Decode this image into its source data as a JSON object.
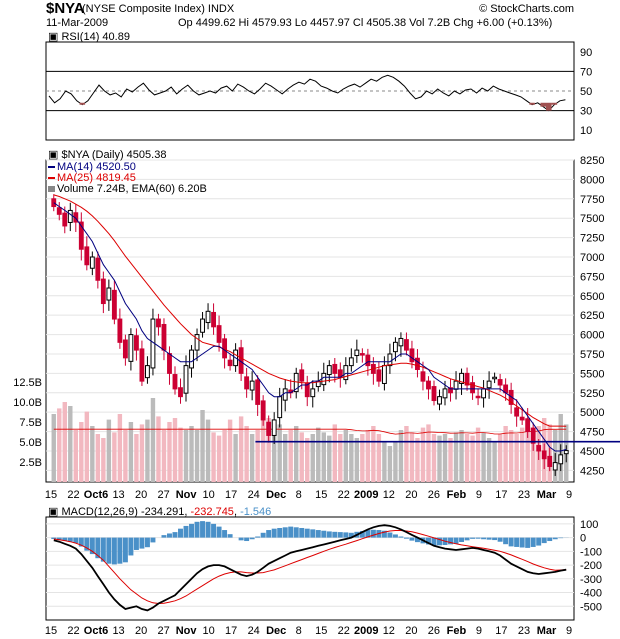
{
  "header": {
    "symbol": "$NYA",
    "name": "(NYSE Composite Index) INDX",
    "copyright": "© StockCharts.com",
    "date": "11-Mar-2009",
    "quote": "Op 4499.62  Hi 4579.93  Lo 4457.97  Cl 4505.38  Vol 7.2B  Chg +6.00 (+0.13%)"
  },
  "colors": {
    "up": "#000000",
    "down": "#cc0033",
    "ma14": "#000080",
    "ma25": "#dd0000",
    "vol_up": "#bbbbbb",
    "vol_down": "#f2b8c0",
    "macd": "#000000",
    "signal": "#dd0000",
    "hist": "#4a90c8",
    "rsi_fill": "#a05050",
    "support": "#000080"
  },
  "chart_data": [
    {
      "type": "line",
      "label": "RSI(14) 40.89",
      "y_ticks": [
        "90",
        "70",
        "50",
        "30",
        "10"
      ],
      "ylim": [
        0,
        100
      ],
      "values": [
        45,
        38,
        42,
        50,
        47,
        40,
        36,
        40,
        48,
        56,
        50,
        46,
        48,
        44,
        52,
        49,
        54,
        58,
        51,
        46,
        48,
        50,
        54,
        47,
        52,
        56,
        50,
        46,
        48,
        50,
        48,
        53,
        55,
        50,
        57,
        54,
        50,
        47,
        52,
        58,
        55,
        51,
        47,
        52,
        56,
        59,
        57,
        62,
        60,
        55,
        53,
        50,
        48,
        52,
        55,
        57,
        54,
        58,
        62,
        60,
        64,
        66,
        64,
        60,
        55,
        48,
        42,
        44,
        50,
        47,
        52,
        48,
        45,
        50,
        47,
        51,
        52,
        48,
        53,
        50,
        55,
        52,
        50,
        48,
        46,
        44,
        40,
        36,
        38,
        34,
        30,
        36,
        40,
        41
      ]
    },
    {
      "type": "candlestick",
      "label": "$NYA (Daily) 4505.38",
      "legend": [
        "MA(14) 4520.50",
        "MA(25) 4819.45",
        "Volume 7.24B, EMA(60) 6.20B"
      ],
      "y_ticks": [
        "8250",
        "8000",
        "7750",
        "7500",
        "7250",
        "7000",
        "6750",
        "6500",
        "6250",
        "6000",
        "5750",
        "5500",
        "5250",
        "5000",
        "4750",
        "4500",
        "4250"
      ],
      "vol_ticks": [
        "12.5B",
        "10.0B",
        "7.5B",
        "5.0B",
        "2.5B"
      ],
      "ylim": [
        4100,
        8250
      ],
      "volume_max": 12.5,
      "support_level": 4620,
      "x_ticks": [
        "15",
        "22",
        "Oct6",
        "13",
        "20",
        "27",
        "Nov",
        "10",
        "17",
        "24",
        "Dec",
        "8",
        "15",
        "22",
        "2009",
        "12",
        "20",
        "26",
        "Feb",
        "9",
        "17",
        "23",
        "Mar",
        "9"
      ],
      "closes": [
        7650,
        7550,
        7400,
        7600,
        7450,
        7100,
        6900,
        7000,
        6700,
        6400,
        6600,
        6200,
        5900,
        5700,
        6000,
        5800,
        5400,
        5600,
        6200,
        6100,
        5800,
        5500,
        5300,
        5200,
        5600,
        5800,
        6000,
        6200,
        6300,
        6100,
        5900,
        5700,
        5600,
        5800,
        5500,
        5300,
        5400,
        5100,
        4900,
        4700,
        4900,
        5200,
        5300,
        5250,
        5500,
        5400,
        5200,
        5300,
        5400,
        5500,
        5600,
        5500,
        5450,
        5600,
        5700,
        5800,
        5750,
        5600,
        5500,
        5400,
        5600,
        5750,
        5900,
        5950,
        5800,
        5650,
        5550,
        5400,
        5300,
        5150,
        5200,
        5300,
        5250,
        5400,
        5500,
        5350,
        5250,
        5200,
        5300,
        5400,
        5450,
        5350,
        5250,
        5100,
        4950,
        4900,
        4750,
        4600,
        4500,
        4400,
        4300,
        4350,
        4450,
        4505
      ],
      "ma14": [
        7700,
        7650,
        7600,
        7550,
        7500,
        7400,
        7300,
        7200,
        7050,
        6900,
        6800,
        6700,
        6550,
        6400,
        6300,
        6200,
        6050,
        5950,
        5900,
        5850,
        5800,
        5750,
        5700,
        5650,
        5650,
        5650,
        5700,
        5750,
        5800,
        5850,
        5850,
        5800,
        5750,
        5700,
        5650,
        5600,
        5550,
        5450,
        5350,
        5250,
        5200,
        5200,
        5250,
        5250,
        5300,
        5350,
        5350,
        5400,
        5400,
        5450,
        5450,
        5450,
        5450,
        5500,
        5500,
        5550,
        5600,
        5650,
        5650,
        5650,
        5650,
        5650,
        5700,
        5750,
        5750,
        5700,
        5650,
        5600,
        5550,
        5450,
        5400,
        5350,
        5300,
        5300,
        5300,
        5300,
        5300,
        5300,
        5300,
        5300,
        5300,
        5300,
        5250,
        5200,
        5150,
        5050,
        4950,
        4850,
        4750,
        4650,
        4550,
        4500,
        4500,
        4520
      ],
      "ma25": [
        7800,
        7780,
        7750,
        7720,
        7680,
        7640,
        7590,
        7530,
        7460,
        7380,
        7300,
        7210,
        7110,
        7010,
        6920,
        6830,
        6740,
        6650,
        6560,
        6470,
        6380,
        6300,
        6220,
        6140,
        6070,
        6000,
        5950,
        5900,
        5880,
        5860,
        5840,
        5810,
        5780,
        5740,
        5700,
        5660,
        5620,
        5580,
        5540,
        5500,
        5470,
        5440,
        5420,
        5400,
        5390,
        5380,
        5380,
        5380,
        5390,
        5400,
        5410,
        5420,
        5440,
        5460,
        5480,
        5500,
        5520,
        5540,
        5560,
        5580,
        5600,
        5610,
        5620,
        5630,
        5630,
        5620,
        5600,
        5580,
        5550,
        5520,
        5490,
        5460,
        5430,
        5410,
        5390,
        5370,
        5350,
        5330,
        5310,
        5280,
        5250,
        5220,
        5180,
        5130,
        5080,
        5030,
        4980,
        4930,
        4890,
        4850,
        4820,
        4820,
        4820,
        4819
      ],
      "volume": [
        8.5,
        9.2,
        10.0,
        9.5,
        6.5,
        7.5,
        8.8,
        7.0,
        6.0,
        5.5,
        7.8,
        6.2,
        8.5,
        6.5,
        7.5,
        6.0,
        7.2,
        7.8,
        10.5,
        8.2,
        6.5,
        7.5,
        8.0,
        6.8,
        6.5,
        7.0,
        6.5,
        9.0,
        7.8,
        6.2,
        5.8,
        6.5,
        7.8,
        6.0,
        8.2,
        7.0,
        6.0,
        6.5,
        9.2,
        8.0,
        6.8,
        7.2,
        6.0,
        6.5,
        7.0,
        6.2,
        5.5,
        6.0,
        6.8,
        6.2,
        5.8,
        7.2,
        6.0,
        6.5,
        6.0,
        5.5,
        6.0,
        6.5,
        7.0,
        6.0,
        5.0,
        4.5,
        5.0,
        6.5,
        7.0,
        6.2,
        5.5,
        6.8,
        7.2,
        6.0,
        5.8,
        6.0,
        5.5,
        6.2,
        6.5,
        6.0,
        5.8,
        6.8,
        6.2,
        5.5,
        5.0,
        6.0,
        7.0,
        6.5,
        6.0,
        6.8,
        7.5,
        6.2,
        7.0,
        8.0,
        7.2,
        6.5,
        8.5,
        7.2
      ]
    },
    {
      "type": "line",
      "label": "MACD(12,26,9) -234.291, -232.745, -1.546",
      "legend": [
        "-234.291",
        "-232.745",
        "-1.546"
      ],
      "y_ticks": [
        "100",
        "0",
        "-100",
        "-200",
        "-300",
        "-400",
        "-500"
      ],
      "ylim": [
        -600,
        150
      ],
      "x_ticks": [
        "15",
        "22",
        "Oct6",
        "13",
        "20",
        "27",
        "Nov",
        "10",
        "17",
        "24",
        "Dec",
        "8",
        "15",
        "22",
        "2009",
        "12",
        "20",
        "26",
        "Feb",
        "9",
        "17",
        "23",
        "Mar",
        "9"
      ],
      "macd": [
        -20,
        -30,
        -45,
        -60,
        -80,
        -120,
        -170,
        -220,
        -280,
        -340,
        -400,
        -450,
        -490,
        -520,
        -510,
        -500,
        -520,
        -530,
        -510,
        -480,
        -460,
        -440,
        -420,
        -380,
        -340,
        -300,
        -260,
        -230,
        -210,
        -200,
        -200,
        -210,
        -230,
        -250,
        -270,
        -280,
        -270,
        -250,
        -220,
        -190,
        -170,
        -150,
        -130,
        -110,
        -100,
        -90,
        -80,
        -70,
        -60,
        -50,
        -40,
        -30,
        -20,
        -10,
        0,
        20,
        40,
        60,
        75,
        85,
        90,
        85,
        75,
        60,
        40,
        20,
        0,
        -20,
        -40,
        -60,
        -70,
        -80,
        -85,
        -90,
        -85,
        -80,
        -75,
        -80,
        -90,
        -100,
        -110,
        -130,
        -160,
        -190,
        -210,
        -230,
        -250,
        -260,
        -265,
        -260,
        -255,
        -250,
        -240,
        -234
      ],
      "signal": [
        -10,
        -15,
        -22,
        -30,
        -40,
        -55,
        -75,
        -100,
        -130,
        -165,
        -210,
        -255,
        -300,
        -340,
        -380,
        -410,
        -440,
        -460,
        -475,
        -480,
        -478,
        -470,
        -460,
        -445,
        -425,
        -400,
        -375,
        -350,
        -325,
        -300,
        -280,
        -265,
        -255,
        -250,
        -250,
        -255,
        -258,
        -258,
        -255,
        -245,
        -235,
        -220,
        -205,
        -190,
        -175,
        -160,
        -145,
        -130,
        -115,
        -100,
        -85,
        -72,
        -60,
        -48,
        -35,
        -22,
        -8,
        5,
        18,
        30,
        40,
        48,
        52,
        52,
        48,
        42,
        33,
        22,
        10,
        -2,
        -14,
        -26,
        -36,
        -45,
        -53,
        -60,
        -66,
        -72,
        -78,
        -85,
        -92,
        -100,
        -112,
        -126,
        -142,
        -158,
        -175,
        -192,
        -207,
        -220,
        -230,
        -238,
        -236,
        -233
      ]
    }
  ]
}
